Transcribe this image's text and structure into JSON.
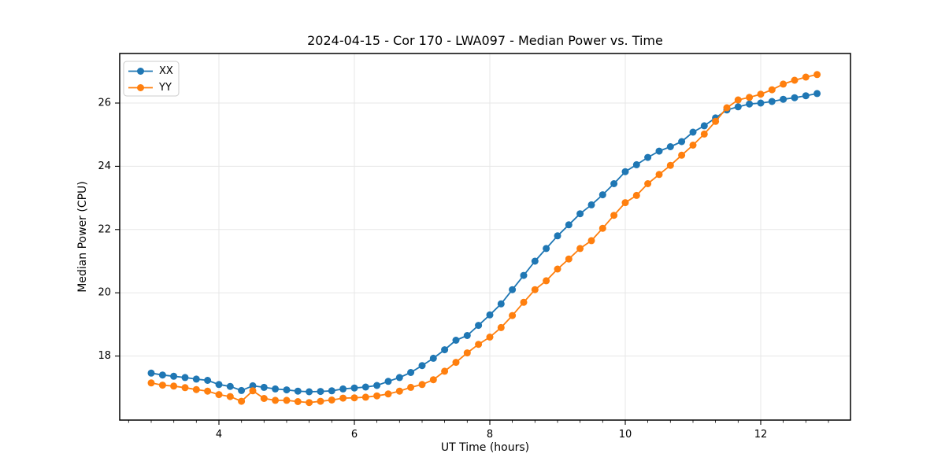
{
  "chart": {
    "title": "2024-04-15 - Cor 170 - LWA097 - Median Power vs. Time",
    "xlabel": "UT Time (hours)",
    "ylabel": "Median Power (CPU)"
  },
  "legend": {
    "position": "upper left",
    "items": [
      {
        "label": "XX",
        "color": "#1f77b4"
      },
      {
        "label": "YY",
        "color": "#ff7f0e"
      }
    ]
  },
  "chart_data": {
    "type": "line",
    "title": "2024-04-15 - Cor 170 - LWA097 - Median Power vs. Time",
    "xlabel": "UT Time (hours)",
    "ylabel": "Median Power (CPU)",
    "marker": "circle",
    "grid": true,
    "legend_position": "upper left",
    "xlim": [
      2.535,
      13.326
    ],
    "ylim": [
      15.975,
      27.567
    ],
    "x_major_ticks": [
      4,
      6,
      8,
      10,
      12
    ],
    "x_minor_step": 0.3333,
    "y_major_ticks": [
      18,
      20,
      22,
      24,
      26
    ],
    "x": [
      3.0,
      3.167,
      3.333,
      3.5,
      3.667,
      3.833,
      4.0,
      4.167,
      4.333,
      4.5,
      4.667,
      4.833,
      5.0,
      5.167,
      5.333,
      5.5,
      5.667,
      5.833,
      6.0,
      6.167,
      6.333,
      6.5,
      6.667,
      6.833,
      7.0,
      7.167,
      7.333,
      7.5,
      7.667,
      7.833,
      8.0,
      8.167,
      8.333,
      8.5,
      8.667,
      8.833,
      9.0,
      9.167,
      9.333,
      9.5,
      9.667,
      9.833,
      10.0,
      10.167,
      10.333,
      10.5,
      10.667,
      10.833,
      11.0,
      11.167,
      11.333,
      11.5,
      11.667,
      11.833,
      12.0,
      12.167,
      12.333,
      12.5,
      12.667,
      12.833
    ],
    "series": [
      {
        "name": "XX",
        "color": "#1f77b4",
        "values": [
          17.46,
          17.4,
          17.36,
          17.32,
          17.27,
          17.23,
          17.1,
          17.04,
          16.91,
          17.06,
          17.01,
          16.96,
          16.93,
          16.89,
          16.87,
          16.88,
          16.9,
          16.96,
          16.99,
          17.02,
          17.07,
          17.2,
          17.32,
          17.48,
          17.7,
          17.93,
          18.2,
          18.5,
          18.65,
          18.97,
          19.3,
          19.65,
          20.1,
          20.55,
          21.0,
          21.4,
          21.8,
          22.15,
          22.5,
          22.78,
          23.1,
          23.45,
          23.83,
          24.05,
          24.28,
          24.48,
          24.62,
          24.78,
          25.08,
          25.28,
          25.53,
          25.78,
          25.88,
          25.97,
          26.0,
          26.05,
          26.12,
          26.17,
          26.23,
          26.3
        ]
      },
      {
        "name": "YY",
        "color": "#ff7f0e",
        "values": [
          17.15,
          17.08,
          17.05,
          17.0,
          16.94,
          16.89,
          16.78,
          16.72,
          16.57,
          16.9,
          16.66,
          16.6,
          16.6,
          16.56,
          16.53,
          16.57,
          16.61,
          16.67,
          16.68,
          16.7,
          16.74,
          16.8,
          16.89,
          17.01,
          17.1,
          17.25,
          17.52,
          17.8,
          18.1,
          18.37,
          18.6,
          18.9,
          19.28,
          19.7,
          20.1,
          20.38,
          20.75,
          21.07,
          21.4,
          21.65,
          22.04,
          22.45,
          22.85,
          23.08,
          23.45,
          23.74,
          24.03,
          24.35,
          24.67,
          25.02,
          25.42,
          25.85,
          26.1,
          26.18,
          26.28,
          26.42,
          26.6,
          26.72,
          26.82,
          26.9
        ]
      }
    ]
  }
}
